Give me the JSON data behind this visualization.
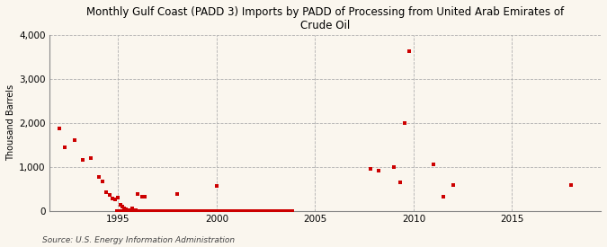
{
  "title": "Monthly Gulf Coast (PADD 3) Imports by PADD of Processing from United Arab Emirates of\nCrude Oil",
  "ylabel": "Thousand Barrels",
  "source": "Source: U.S. Energy Information Administration",
  "background_color": "#faf6ee",
  "plot_bg_color": "#faf6ee",
  "marker_color": "#cc0000",
  "xlim": [
    1991.5,
    2019.5
  ],
  "ylim": [
    0,
    4000
  ],
  "yticks": [
    0,
    1000,
    2000,
    3000,
    4000
  ],
  "xticks": [
    1995,
    2000,
    2005,
    2010,
    2015
  ],
  "data_points": [
    [
      1992.0,
      1880
    ],
    [
      1992.3,
      1450
    ],
    [
      1992.8,
      1600
    ],
    [
      1993.2,
      1160
    ],
    [
      1993.6,
      1200
    ],
    [
      1994.0,
      760
    ],
    [
      1994.2,
      660
    ],
    [
      1994.4,
      420
    ],
    [
      1994.55,
      360
    ],
    [
      1994.7,
      270
    ],
    [
      1994.85,
      250
    ],
    [
      1995.0,
      290
    ],
    [
      1995.1,
      140
    ],
    [
      1995.2,
      100
    ],
    [
      1995.3,
      60
    ],
    [
      1995.4,
      30
    ],
    [
      1995.5,
      10
    ],
    [
      1995.6,
      10
    ],
    [
      1995.7,
      50
    ],
    [
      1995.8,
      10
    ],
    [
      1995.9,
      10
    ],
    [
      1996.0,
      380
    ],
    [
      1996.2,
      310
    ],
    [
      1996.35,
      310
    ],
    [
      1998.0,
      390
    ],
    [
      2000.0,
      560
    ],
    [
      1994.92,
      0
    ],
    [
      1994.95,
      0
    ],
    [
      1995.0,
      0
    ],
    [
      1995.08,
      0
    ],
    [
      1995.17,
      0
    ],
    [
      1995.25,
      0
    ],
    [
      1995.33,
      0
    ],
    [
      1995.42,
      0
    ],
    [
      1995.5,
      0
    ],
    [
      1995.58,
      0
    ],
    [
      1995.67,
      0
    ],
    [
      1995.75,
      0
    ],
    [
      1995.83,
      0
    ],
    [
      1995.92,
      0
    ],
    [
      1996.0,
      0
    ],
    [
      1996.08,
      0
    ],
    [
      1996.17,
      0
    ],
    [
      1996.25,
      0
    ],
    [
      1996.33,
      0
    ],
    [
      1996.42,
      0
    ],
    [
      1996.5,
      0
    ],
    [
      1996.58,
      0
    ],
    [
      1996.67,
      0
    ],
    [
      1996.75,
      0
    ],
    [
      1996.83,
      0
    ],
    [
      1996.92,
      0
    ],
    [
      1997.0,
      0
    ],
    [
      1997.08,
      0
    ],
    [
      1997.17,
      0
    ],
    [
      1997.25,
      0
    ],
    [
      1997.33,
      0
    ],
    [
      1997.42,
      0
    ],
    [
      1997.5,
      0
    ],
    [
      1997.58,
      0
    ],
    [
      1997.67,
      0
    ],
    [
      1997.75,
      0
    ],
    [
      1997.83,
      0
    ],
    [
      1997.92,
      0
    ],
    [
      1998.0,
      0
    ],
    [
      1998.08,
      0
    ],
    [
      1998.17,
      0
    ],
    [
      1998.25,
      0
    ],
    [
      1998.33,
      0
    ],
    [
      1998.42,
      0
    ],
    [
      1998.5,
      0
    ],
    [
      1998.58,
      0
    ],
    [
      1998.67,
      0
    ],
    [
      1998.75,
      0
    ],
    [
      1998.83,
      0
    ],
    [
      1998.92,
      0
    ],
    [
      1999.0,
      0
    ],
    [
      1999.08,
      0
    ],
    [
      1999.17,
      0
    ],
    [
      1999.25,
      0
    ],
    [
      1999.33,
      0
    ],
    [
      1999.42,
      0
    ],
    [
      1999.5,
      0
    ],
    [
      1999.58,
      0
    ],
    [
      1999.67,
      0
    ],
    [
      1999.75,
      0
    ],
    [
      1999.83,
      0
    ],
    [
      1999.92,
      0
    ],
    [
      2000.0,
      0
    ],
    [
      2000.08,
      0
    ],
    [
      2000.17,
      0
    ],
    [
      2000.25,
      0
    ],
    [
      2000.33,
      0
    ],
    [
      2000.42,
      0
    ],
    [
      2000.5,
      0
    ],
    [
      2000.58,
      0
    ],
    [
      2000.67,
      0
    ],
    [
      2000.75,
      0
    ],
    [
      2000.83,
      0
    ],
    [
      2000.92,
      0
    ],
    [
      2001.0,
      0
    ],
    [
      2001.08,
      0
    ],
    [
      2001.17,
      0
    ],
    [
      2001.25,
      0
    ],
    [
      2001.33,
      0
    ],
    [
      2001.42,
      0
    ],
    [
      2001.5,
      0
    ],
    [
      2001.58,
      0
    ],
    [
      2001.67,
      0
    ],
    [
      2001.75,
      0
    ],
    [
      2001.83,
      0
    ],
    [
      2001.92,
      0
    ],
    [
      2002.0,
      0
    ],
    [
      2002.08,
      0
    ],
    [
      2002.17,
      0
    ],
    [
      2002.25,
      0
    ],
    [
      2002.33,
      0
    ],
    [
      2002.42,
      0
    ],
    [
      2002.5,
      0
    ],
    [
      2002.58,
      0
    ],
    [
      2002.67,
      0
    ],
    [
      2002.75,
      0
    ],
    [
      2002.83,
      0
    ],
    [
      2002.92,
      0
    ],
    [
      2003.0,
      0
    ],
    [
      2003.08,
      0
    ],
    [
      2003.17,
      0
    ],
    [
      2003.25,
      0
    ],
    [
      2003.33,
      0
    ],
    [
      2003.42,
      0
    ],
    [
      2003.5,
      0
    ],
    [
      2003.58,
      0
    ],
    [
      2003.67,
      0
    ],
    [
      2003.75,
      0
    ],
    [
      2003.83,
      0
    ],
    [
      2007.8,
      950
    ],
    [
      2008.2,
      920
    ],
    [
      2009.0,
      1000
    ],
    [
      2009.3,
      650
    ],
    [
      2009.55,
      2000
    ],
    [
      2009.75,
      3640
    ],
    [
      2011.0,
      1050
    ],
    [
      2011.5,
      310
    ],
    [
      2012.0,
      590
    ],
    [
      2018.0,
      590
    ]
  ]
}
